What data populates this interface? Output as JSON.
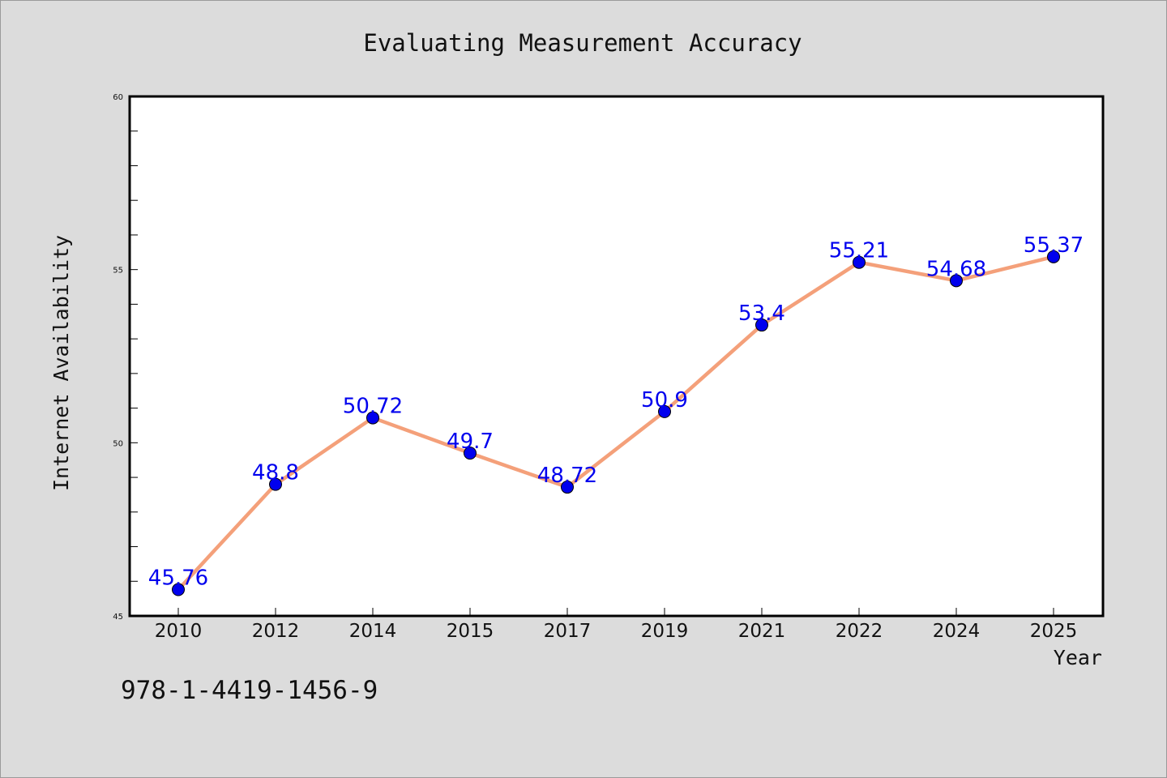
{
  "chart_data": {
    "type": "line",
    "title": "Evaluating Measurement Accuracy",
    "xlabel": "Year",
    "ylabel": "Internet Availability",
    "categories": [
      "2010",
      "2012",
      "2014",
      "2015",
      "2017",
      "2019",
      "2021",
      "2022",
      "2024",
      "2025"
    ],
    "series": [
      {
        "values": [
          45.76,
          48.8,
          50.72,
          49.7,
          48.72,
          50.9,
          53.4,
          55.21,
          54.68,
          55.37
        ],
        "labels": [
          "45.76",
          "48.8",
          "50.72",
          "49.7",
          "48.72",
          "50.9",
          "53.4",
          "55.21",
          "54.68",
          "55.37"
        ],
        "line_color": "#f4a07a",
        "marker_color": "#0000ee"
      }
    ],
    "ylim": [
      45,
      60
    ],
    "yticks": [
      "45",
      "50",
      "55",
      "60"
    ],
    "grid": false,
    "legend": "none"
  },
  "footer": {
    "isbn": "978-1-4419-1456-9"
  },
  "colors": {
    "background": "#dcdcdc",
    "plot_background": "#ffffff",
    "label_color": "#0000ee"
  }
}
